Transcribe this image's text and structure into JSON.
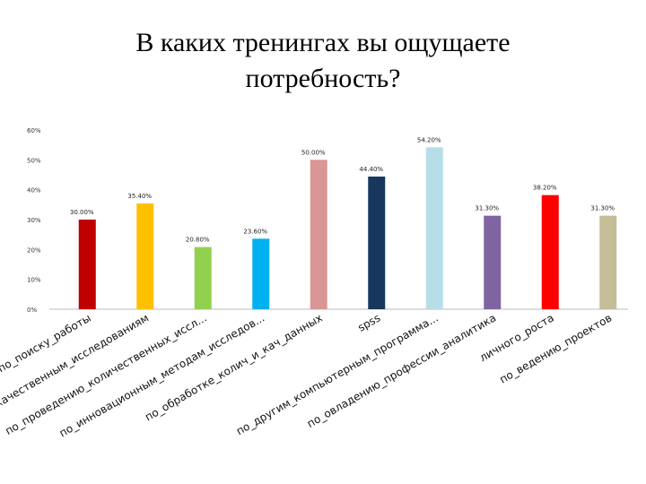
{
  "title_line1": "В каких тренингах вы ощущаете",
  "title_line2": "потребность?",
  "chart_data": {
    "type": "bar",
    "title": "",
    "xlabel": "",
    "ylabel": "",
    "ylim": [
      0,
      60
    ],
    "yticks": [
      "0%",
      "10%",
      "20%",
      "30%",
      "40%",
      "50%",
      "60%"
    ],
    "grid": false,
    "categories": [
      "по_поиску_работы",
      "по_качественным_исследованиям",
      "по_проведению_количественных_иссл...",
      "по_инновационным_методам_исследов...",
      "по_обработке_колич_и_кач_данных",
      "spss",
      "по_другим_компьютерным_программа...",
      "по_овладению_профессии_аналитика",
      "личного_роста",
      "по_ведению_проектов"
    ],
    "values": [
      30.0,
      35.4,
      20.8,
      23.6,
      50.0,
      44.4,
      54.2,
      31.3,
      38.2,
      31.3
    ],
    "value_labels": [
      "30.00%",
      "35.40%",
      "20.80%",
      "23.60%",
      "50.00%",
      "44.40%",
      "54.20%",
      "31.30%",
      "38.20%",
      "31.30%"
    ],
    "colors": [
      "#c00000",
      "#ffc000",
      "#92d050",
      "#00b0f0",
      "#d99694",
      "#17375e",
      "#b7dee8",
      "#8064a2",
      "#ff0000",
      "#c4bd97"
    ]
  }
}
